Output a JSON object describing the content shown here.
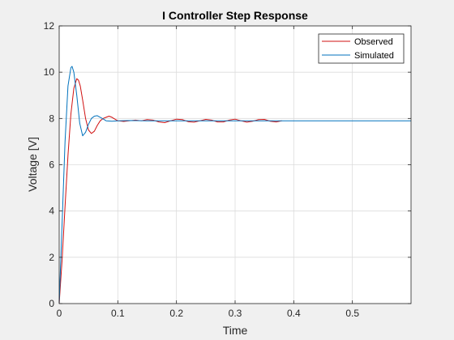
{
  "chart_data": {
    "type": "line",
    "title": "I Controller Step Response",
    "xlabel": "Time",
    "ylabel": "Voltage [V]",
    "xlim": [
      0,
      0.6
    ],
    "ylim": [
      0,
      12
    ],
    "xticks": [
      0,
      0.1,
      0.2,
      0.3,
      0.4,
      0.5
    ],
    "xtick_labels": [
      "0",
      "0.1",
      "0.2",
      "0.3",
      "0.4",
      "0.5"
    ],
    "yticks": [
      0,
      2,
      4,
      6,
      8,
      10,
      12
    ],
    "ytick_labels": [
      "0",
      "2",
      "4",
      "6",
      "8",
      "10",
      "12"
    ],
    "grid": true,
    "legend_position": "top-right",
    "series": [
      {
        "name": "Observed",
        "color": "#d01010",
        "x": [
          0,
          0.005,
          0.01,
          0.015,
          0.02,
          0.025,
          0.03,
          0.033,
          0.036,
          0.04,
          0.045,
          0.05,
          0.055,
          0.06,
          0.065,
          0.07,
          0.075,
          0.08,
          0.085,
          0.09,
          0.095,
          0.1,
          0.11,
          0.12,
          0.13,
          0.14,
          0.15,
          0.16,
          0.17,
          0.18,
          0.19,
          0.2,
          0.21,
          0.22,
          0.23,
          0.24,
          0.25,
          0.26,
          0.27,
          0.28,
          0.29,
          0.3,
          0.31,
          0.32,
          0.33,
          0.34,
          0.35,
          0.36,
          0.37,
          0.38
        ],
        "y": [
          0,
          1.9,
          4.2,
          6.4,
          8.2,
          9.3,
          9.72,
          9.65,
          9.4,
          8.8,
          8.0,
          7.5,
          7.35,
          7.45,
          7.7,
          7.9,
          8.0,
          8.05,
          8.1,
          8.05,
          7.97,
          7.9,
          7.87,
          7.9,
          7.93,
          7.9,
          7.95,
          7.93,
          7.85,
          7.82,
          7.9,
          7.97,
          7.95,
          7.86,
          7.84,
          7.9,
          7.96,
          7.93,
          7.85,
          7.85,
          7.93,
          7.97,
          7.9,
          7.84,
          7.88,
          7.95,
          7.96,
          7.88,
          7.85,
          7.9
        ]
      },
      {
        "name": "Simulated",
        "color": "#0072bd",
        "x": [
          0,
          0.005,
          0.01,
          0.015,
          0.02,
          0.022,
          0.025,
          0.03,
          0.035,
          0.04,
          0.045,
          0.05,
          0.055,
          0.06,
          0.065,
          0.07,
          0.075,
          0.08,
          0.09,
          0.1,
          0.12,
          0.15,
          0.2,
          0.3,
          0.4,
          0.5,
          0.6
        ],
        "y": [
          0,
          3.5,
          7.0,
          9.4,
          10.2,
          10.25,
          10.0,
          9.0,
          7.8,
          7.25,
          7.4,
          7.75,
          8.0,
          8.1,
          8.12,
          8.05,
          7.98,
          7.9,
          7.88,
          7.9,
          7.91,
          7.9,
          7.9,
          7.9,
          7.9,
          7.9,
          7.9
        ]
      }
    ]
  }
}
